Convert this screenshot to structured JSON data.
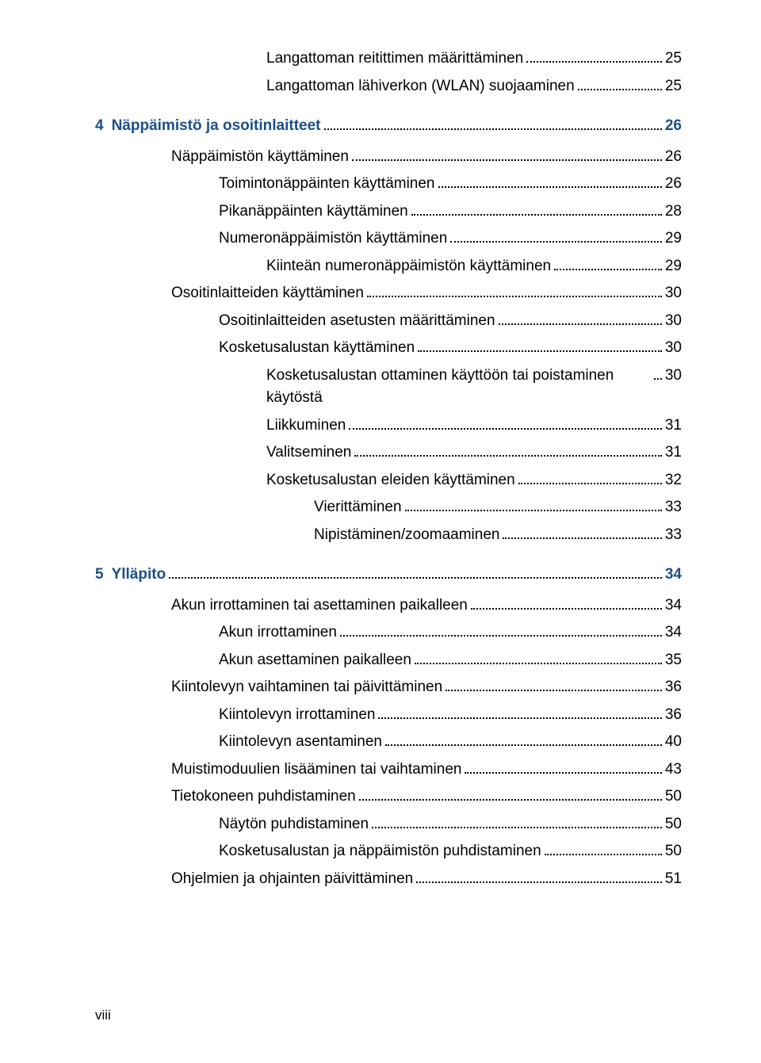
{
  "colors": {
    "chapter": "#1a4f8a",
    "text": "#000000",
    "background": "#ffffff"
  },
  "entries": [
    {
      "type": "item",
      "level": 3,
      "label": "Langattoman reitittimen määrittäminen",
      "page": "25"
    },
    {
      "type": "item",
      "level": 3,
      "label": "Langattoman lähiverkon (WLAN) suojaaminen",
      "page": "25"
    },
    {
      "type": "chapter",
      "num": "4",
      "label": "Näppäimistö ja osoitinlaitteet",
      "page": "26"
    },
    {
      "type": "item",
      "level": 1,
      "label": "Näppäimistön käyttäminen",
      "page": "26"
    },
    {
      "type": "item",
      "level": 2,
      "label": "Toimintonäppäinten käyttäminen",
      "page": "26"
    },
    {
      "type": "item",
      "level": 2,
      "label": "Pikanäppäinten käyttäminen",
      "page": "28"
    },
    {
      "type": "item",
      "level": 2,
      "label": "Numeronäppäimistön käyttäminen",
      "page": "29"
    },
    {
      "type": "item",
      "level": 3,
      "label": "Kiinteän numeronäppäimistön käyttäminen",
      "page": "29"
    },
    {
      "type": "item",
      "level": 1,
      "label": "Osoitinlaitteiden käyttäminen",
      "page": "30"
    },
    {
      "type": "item",
      "level": 2,
      "label": "Osoitinlaitteiden asetusten määrittäminen",
      "page": "30"
    },
    {
      "type": "item",
      "level": 2,
      "label": "Kosketusalustan käyttäminen",
      "page": "30"
    },
    {
      "type": "item",
      "level": 3,
      "label": "Kosketusalustan ottaminen käyttöön tai poistaminen käytöstä",
      "page": "30"
    },
    {
      "type": "item",
      "level": 3,
      "label": "Liikkuminen",
      "page": "31"
    },
    {
      "type": "item",
      "level": 3,
      "label": "Valitseminen",
      "page": "31"
    },
    {
      "type": "item",
      "level": 3,
      "label": "Kosketusalustan eleiden käyttäminen",
      "page": "32"
    },
    {
      "type": "item",
      "level": 4,
      "label": "Vierittäminen",
      "page": "33"
    },
    {
      "type": "item",
      "level": 4,
      "label": "Nipistäminen/zoomaaminen",
      "page": "33"
    },
    {
      "type": "chapter",
      "num": "5",
      "label": "Ylläpito",
      "page": "34"
    },
    {
      "type": "item",
      "level": 1,
      "label": "Akun irrottaminen tai asettaminen paikalleen",
      "page": "34"
    },
    {
      "type": "item",
      "level": 2,
      "label": "Akun irrottaminen",
      "page": "34"
    },
    {
      "type": "item",
      "level": 2,
      "label": "Akun asettaminen paikalleen",
      "page": "35"
    },
    {
      "type": "item",
      "level": 1,
      "label": "Kiintolevyn vaihtaminen tai päivittäminen",
      "page": "36"
    },
    {
      "type": "item",
      "level": 2,
      "label": "Kiintolevyn irrottaminen",
      "page": "36"
    },
    {
      "type": "item",
      "level": 2,
      "label": "Kiintolevyn asentaminen",
      "page": "40"
    },
    {
      "type": "item",
      "level": 1,
      "label": "Muistimoduulien lisääminen tai vaihtaminen",
      "page": "43"
    },
    {
      "type": "item",
      "level": 1,
      "label": "Tietokoneen puhdistaminen",
      "page": "50"
    },
    {
      "type": "item",
      "level": 2,
      "label": "Näytön puhdistaminen",
      "page": "50"
    },
    {
      "type": "item",
      "level": 2,
      "label": "Kosketusalustan ja näppäimistön puhdistaminen",
      "page": "50"
    },
    {
      "type": "item",
      "level": 1,
      "label": "Ohjelmien ja ohjainten päivittäminen",
      "page": "51"
    }
  ],
  "pageNumber": "viii"
}
